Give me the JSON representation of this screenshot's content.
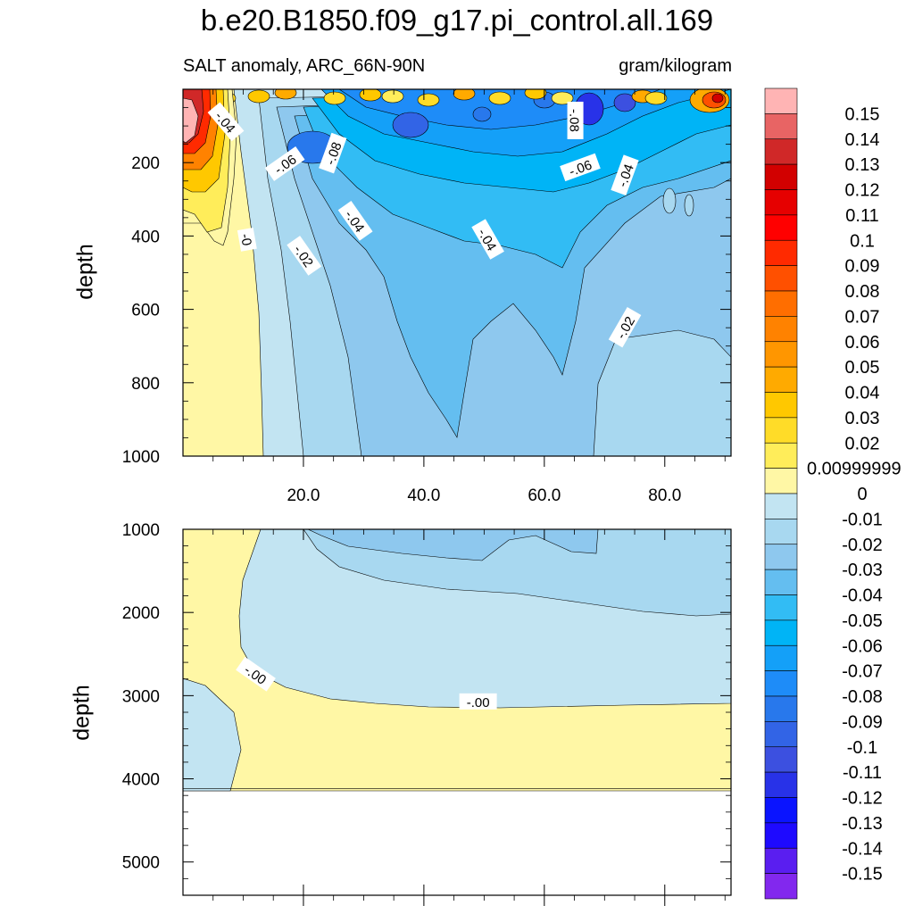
{
  "chart_data": [
    {
      "type": "heatmap",
      "panel": "upper",
      "title": "b.e20.B1850.f09_g17.pi_control.all.169",
      "subtitle_left": "SALT anomaly, ARC_66N-90N",
      "subtitle_right": "gram/kilogram",
      "ylabel": "depth",
      "xlim": [
        0,
        91
      ],
      "ylim": [
        1000,
        0
      ],
      "x_ticks": [
        "20.0",
        "40.0",
        "60.0",
        "80.0"
      ],
      "x_tick_values": [
        20,
        40,
        60,
        80
      ],
      "y_ticks": [
        "200",
        "400",
        "600",
        "800",
        "1000"
      ],
      "y_tick_values": [
        200,
        400,
        600,
        800,
        1000
      ],
      "contour_labels": [
        {
          "text": "-.04",
          "x": 7,
          "y": 90
        },
        {
          "text": "-.06",
          "x": 17,
          "y": 205
        },
        {
          "text": "-.08",
          "x": 25,
          "y": 175
        },
        {
          "text": "-.04",
          "x": 28.5,
          "y": 360
        },
        {
          "text": "-0",
          "x": 10.5,
          "y": 410
        },
        {
          "text": "-.02",
          "x": 20,
          "y": 455
        },
        {
          "text": "-.04",
          "x": 50.5,
          "y": 410
        },
        {
          "text": "-.08",
          "x": 65,
          "y": 85
        },
        {
          "text": "-.06",
          "x": 66,
          "y": 215
        },
        {
          "text": "-.04",
          "x": 73.5,
          "y": 235
        },
        {
          "text": "-.02",
          "x": 73.5,
          "y": 650
        }
      ]
    },
    {
      "type": "heatmap",
      "panel": "lower",
      "ylabel": "depth",
      "xlim": [
        0,
        91
      ],
      "ylim": [
        5400,
        1000
      ],
      "y_ticks": [
        "1000",
        "2000",
        "3000",
        "4000",
        "5000"
      ],
      "y_tick_values": [
        1000,
        2000,
        3000,
        4000,
        5000
      ],
      "max_depth_with_data": 4120,
      "contour_labels": [
        {
          "text": "-.00",
          "x": 12,
          "y": 2750
        },
        {
          "text": "-.00",
          "x": 49,
          "y": 3080
        }
      ]
    }
  ],
  "colorbar": {
    "labels": [
      "0.15",
      "0.14",
      "0.13",
      "0.12",
      "0.11",
      "0.1",
      "0.09",
      "0.08",
      "0.07",
      "0.06",
      "0.05",
      "0.04",
      "0.03",
      "0.02",
      "0.00999999",
      "0",
      "-0.01",
      "-0.02",
      "-0.03",
      "-0.04",
      "-0.05",
      "-0.06",
      "-0.07",
      "-0.08",
      "-0.09",
      "-0.1",
      "-0.11",
      "-0.12",
      "-0.13",
      "-0.14",
      "-0.15"
    ],
    "colors": [
      "#ffb4b4",
      "#e86464",
      "#d02828",
      "#d20000",
      "#e60000",
      "#ff0000",
      "#ff2a00",
      "#ff5000",
      "#ff6e00",
      "#ff8200",
      "#ff9600",
      "#ffaa00",
      "#ffc800",
      "#ffdc28",
      "#ffed5a",
      "#fff7a5",
      "#c2e4f2",
      "#a8d8f0",
      "#8ec8ee",
      "#64bef0",
      "#32bcf4",
      "#00b4f6",
      "#14a0f8",
      "#1e8cf8",
      "#2878ec",
      "#3264e6",
      "#3c50e0",
      "#2832e8",
      "#0a14ff",
      "#1e0aff",
      "#5a1ef0",
      "#8228ee"
    ]
  }
}
